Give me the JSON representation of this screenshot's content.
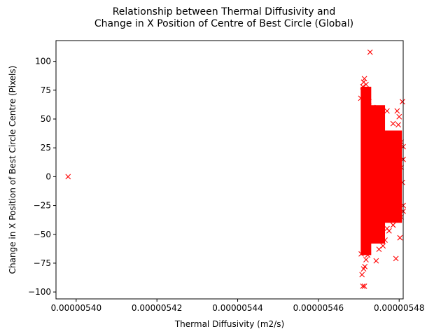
{
  "chart_data": {
    "type": "scatter",
    "title_lines": [
      "Relationship between Thermal Diffusivity and",
      "Change in X Position of Centre of Best Circle (Global)"
    ],
    "xlabel": "Thermal Diffusivity (m2/s)",
    "ylabel": "Change in X Position of Best Circle Centre (Pixels)",
    "xlim": [
      5.395e-06,
      5.481e-06
    ],
    "ylim": [
      -106,
      118
    ],
    "xticks": [
      {
        "value": 5.4e-06,
        "label": "0.00000540"
      },
      {
        "value": 5.42e-06,
        "label": "0.00000542"
      },
      {
        "value": 5.44e-06,
        "label": "0.00000544"
      },
      {
        "value": 5.46e-06,
        "label": "0.00000546"
      },
      {
        "value": 5.48e-06,
        "label": "0.00000548"
      }
    ],
    "yticks": [
      {
        "value": -100,
        "label": "−100"
      },
      {
        "value": -75,
        "label": "−75"
      },
      {
        "value": -50,
        "label": "−50"
      },
      {
        "value": -25,
        "label": "−25"
      },
      {
        "value": 0,
        "label": "0"
      },
      {
        "value": 25,
        "label": "25"
      },
      {
        "value": 50,
        "label": "50"
      },
      {
        "value": 75,
        "label": "75"
      },
      {
        "value": 100,
        "label": "100"
      }
    ],
    "grid": false,
    "legend": "none",
    "marker": "x",
    "color": "#ff0000",
    "series": [
      {
        "points": [
          [
            5.398e-06,
            0
          ],
          [
            5.4728e-06,
            108
          ],
          [
            5.4714e-06,
            85
          ],
          [
            5.4712e-06,
            82
          ],
          [
            5.4718e-06,
            80
          ],
          [
            5.471e-06,
            78
          ],
          [
            5.4722e-06,
            72
          ],
          [
            5.4716e-06,
            70
          ],
          [
            5.4705e-06,
            68
          ],
          [
            5.4725e-06,
            65
          ],
          [
            5.4735e-06,
            60
          ],
          [
            5.474e-06,
            58
          ],
          [
            5.477e-06,
            57
          ],
          [
            5.4795e-06,
            57
          ],
          [
            5.4808e-06,
            65
          ],
          [
            5.48e-06,
            52
          ],
          [
            5.4785e-06,
            46
          ],
          [
            5.4798e-06,
            45
          ],
          [
            5.4795e-06,
            33
          ],
          [
            5.4788e-06,
            28
          ],
          [
            5.4805e-06,
            30
          ],
          [
            5.481e-06,
            26
          ],
          [
            5.481e-06,
            15
          ],
          [
            5.4805e-06,
            8
          ],
          [
            5.4808e-06,
            -5
          ],
          [
            5.48e-06,
            -12
          ],
          [
            5.481e-06,
            -25
          ],
          [
            5.481e-06,
            -30
          ],
          [
            5.4797e-06,
            -28
          ],
          [
            5.4805e-06,
            -35
          ],
          [
            5.479e-06,
            -32
          ],
          [
            5.478e-06,
            -35
          ],
          [
            5.4785e-06,
            -42
          ],
          [
            5.4775e-06,
            -47
          ],
          [
            5.477e-06,
            -45
          ],
          [
            5.4802e-06,
            -53
          ],
          [
            5.4765e-06,
            -55
          ],
          [
            5.476e-06,
            -60
          ],
          [
            5.475e-06,
            -63
          ],
          [
            5.4743e-06,
            -73
          ],
          [
            5.4792e-06,
            -71
          ],
          [
            5.4722e-06,
            -68
          ],
          [
            5.4718e-06,
            -72
          ],
          [
            5.4712e-06,
            -80
          ],
          [
            5.4708e-06,
            -85
          ],
          [
            5.4714e-06,
            -95
          ],
          [
            5.471e-06,
            -95
          ],
          [
            5.4706e-06,
            -67
          ],
          [
            5.4715e-06,
            -78
          ]
        ]
      }
    ]
  }
}
